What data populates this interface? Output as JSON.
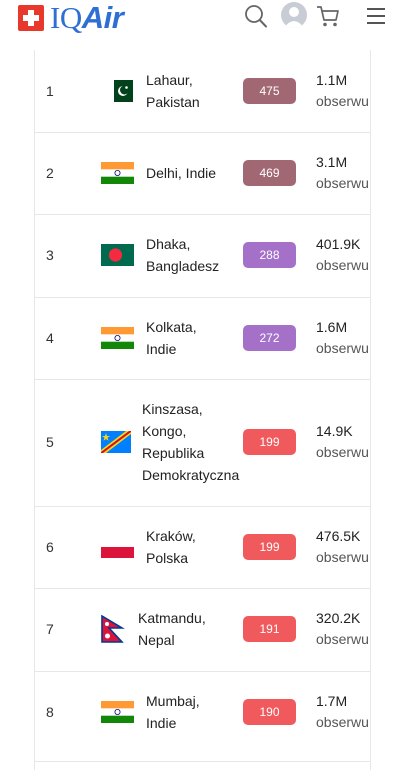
{
  "header": {
    "logo_text": "IQ",
    "logo_text_italic": "Air",
    "icons": [
      "search-icon",
      "avatar",
      "cart-icon",
      "hamburger-menu-icon"
    ]
  },
  "colors": {
    "brand_blue": "#2f6fd3",
    "brand_red": "#e8382c",
    "aqi_hazardous": "#a16874",
    "aqi_very_unhealthy": "#a470c8",
    "aqi_unhealthy": "#f05a5d"
  },
  "rows": [
    {
      "rank": "1",
      "city_line1": "Lahaur,",
      "city_line2": "Pakistan",
      "aqi": "475",
      "value": "1.1M",
      "label": "obserwu"
    },
    {
      "rank": "2",
      "city_line1": "Delhi, Indie",
      "aqi": "469",
      "value": "3.1M",
      "label": "obserwu"
    },
    {
      "rank": "3",
      "city_line1": "Dhaka,",
      "city_line2": "Bangladesz",
      "aqi": "288",
      "value": "401.9K",
      "label": "obserwu"
    },
    {
      "rank": "4",
      "city_line1": "Kolkata,",
      "city_line2": "Indie",
      "aqi": "272",
      "value": "1.6M",
      "label": "obserwu"
    },
    {
      "rank": "5",
      "city_line1": "Kinszasa,",
      "city_line2": "Kongo,",
      "city_line3": "Republika",
      "city_line4": "Demokratyczna",
      "aqi": "199",
      "value": "14.9K",
      "label": "obserwu"
    },
    {
      "rank": "6",
      "city_line1": "Kraków,",
      "city_line2": "Polska",
      "aqi": "199",
      "value": "476.5K",
      "label": "obserwu"
    },
    {
      "rank": "7",
      "city_line1": "Katmandu,",
      "city_line2": "Nepal",
      "aqi": "191",
      "value": "320.2K",
      "label": "obserwu"
    },
    {
      "rank": "8",
      "city_line1": "Mumbaj,",
      "city_line2": "Indie",
      "aqi": "190",
      "value": "1.7M",
      "label": "obserwu"
    }
  ]
}
